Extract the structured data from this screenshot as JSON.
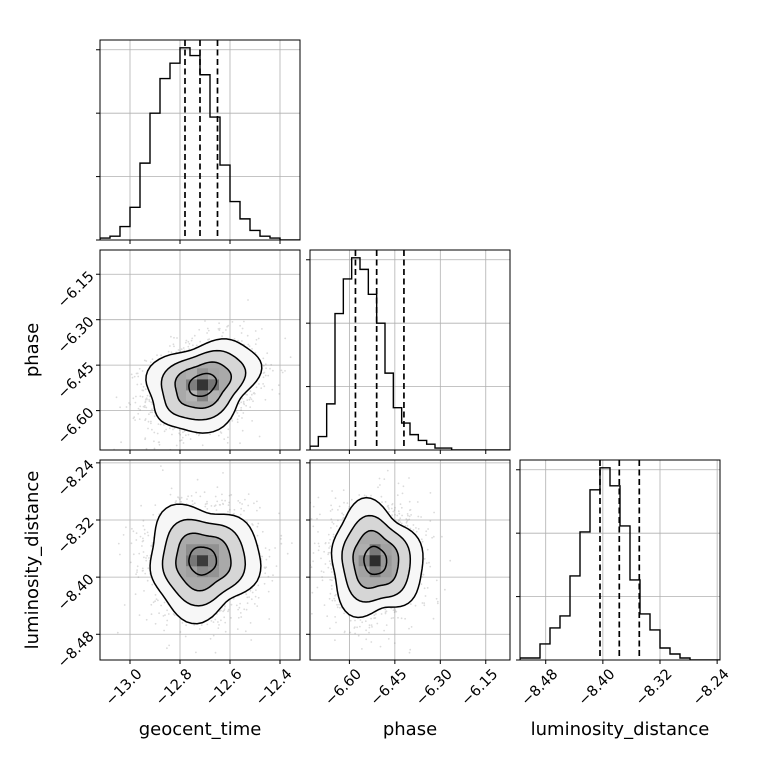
{
  "chart_data": {
    "type": "corner",
    "parameters": [
      {
        "name": "geocent_time",
        "label": "geocent_time",
        "range": [
          -13.12,
          -12.32
        ],
        "ticks": [
          -13.0,
          -12.8,
          -12.6,
          -12.4
        ],
        "tick_labels": [
          "−13.0",
          "−12.8",
          "−12.6",
          "−12.4"
        ],
        "median": -12.72,
        "quantiles": [
          -12.78,
          -12.72,
          -12.65
        ],
        "hist_bins": {
          "start": -13.12,
          "width": 0.04,
          "counts": [
            1,
            2,
            7,
            17,
            40,
            66,
            84,
            92,
            100,
            96,
            86,
            64,
            39,
            20,
            11,
            5,
            2,
            1,
            0,
            0
          ]
        },
        "hist_grid_fractions": [
          0.0,
          0.33,
          0.66,
          0.99
        ]
      },
      {
        "name": "phase",
        "label": "phase",
        "range": [
          -6.73,
          -6.07
        ],
        "ticks": [
          -6.6,
          -6.45,
          -6.3,
          -6.15
        ],
        "tick_labels": [
          "−6.60",
          "−6.45",
          "−6.30",
          "−6.15"
        ],
        "median": -6.51,
        "quantiles": [
          -6.58,
          -6.51,
          -6.42
        ],
        "hist_bins": {
          "start": -6.73,
          "width": 0.0275,
          "counts": [
            2,
            7,
            24,
            71,
            89,
            100,
            94,
            81,
            66,
            40,
            22,
            14,
            8,
            5,
            3,
            1,
            1,
            0,
            0,
            0,
            0,
            0,
            0,
            0
          ]
        },
        "hist_grid_fractions": [
          0.0,
          0.33,
          0.66,
          0.99
        ]
      },
      {
        "name": "luminosity_distance",
        "label": "luminosity_distance",
        "range": [
          -8.516,
          -8.236
        ],
        "ticks": [
          -8.48,
          -8.4,
          -8.32,
          -8.24
        ],
        "tick_labels": [
          "−8.48",
          "−8.40",
          "−8.32",
          "−8.24"
        ],
        "median": -8.377,
        "quantiles": [
          -8.404,
          -8.377,
          -8.349
        ],
        "hist_bins": {
          "start": -8.516,
          "width": 0.014,
          "counts": [
            1,
            1,
            8,
            16,
            22,
            42,
            64,
            85,
            96,
            87,
            67,
            40,
            23,
            15,
            6,
            3,
            1,
            0,
            0,
            0
          ]
        },
        "hist_grid_fractions": [
          0.0,
          0.33,
          0.66,
          0.99
        ]
      }
    ],
    "pairs": [
      {
        "x": "geocent_time",
        "y": "phase",
        "mean": [
          -12.71,
          -6.515
        ],
        "std": [
          0.11,
          0.075
        ],
        "corr": 0.25
      },
      {
        "x": "geocent_time",
        "y": "luminosity_distance",
        "mean": [
          -12.71,
          -8.377
        ],
        "std": [
          0.11,
          0.039
        ],
        "corr": 0.0
      },
      {
        "x": "phase",
        "y": "luminosity_distance",
        "mean": [
          -6.515,
          -8.377
        ],
        "std": [
          0.075,
          0.039
        ],
        "corr": -0.05
      }
    ],
    "contour_levels_sigma": [
      0.5,
      1.0,
      1.5,
      2.0
    ],
    "grid": true,
    "colors": {
      "line": "#000000",
      "grid": "#b0b0b0",
      "scatter": "#7f7f7f",
      "background": "#ffffff"
    }
  }
}
